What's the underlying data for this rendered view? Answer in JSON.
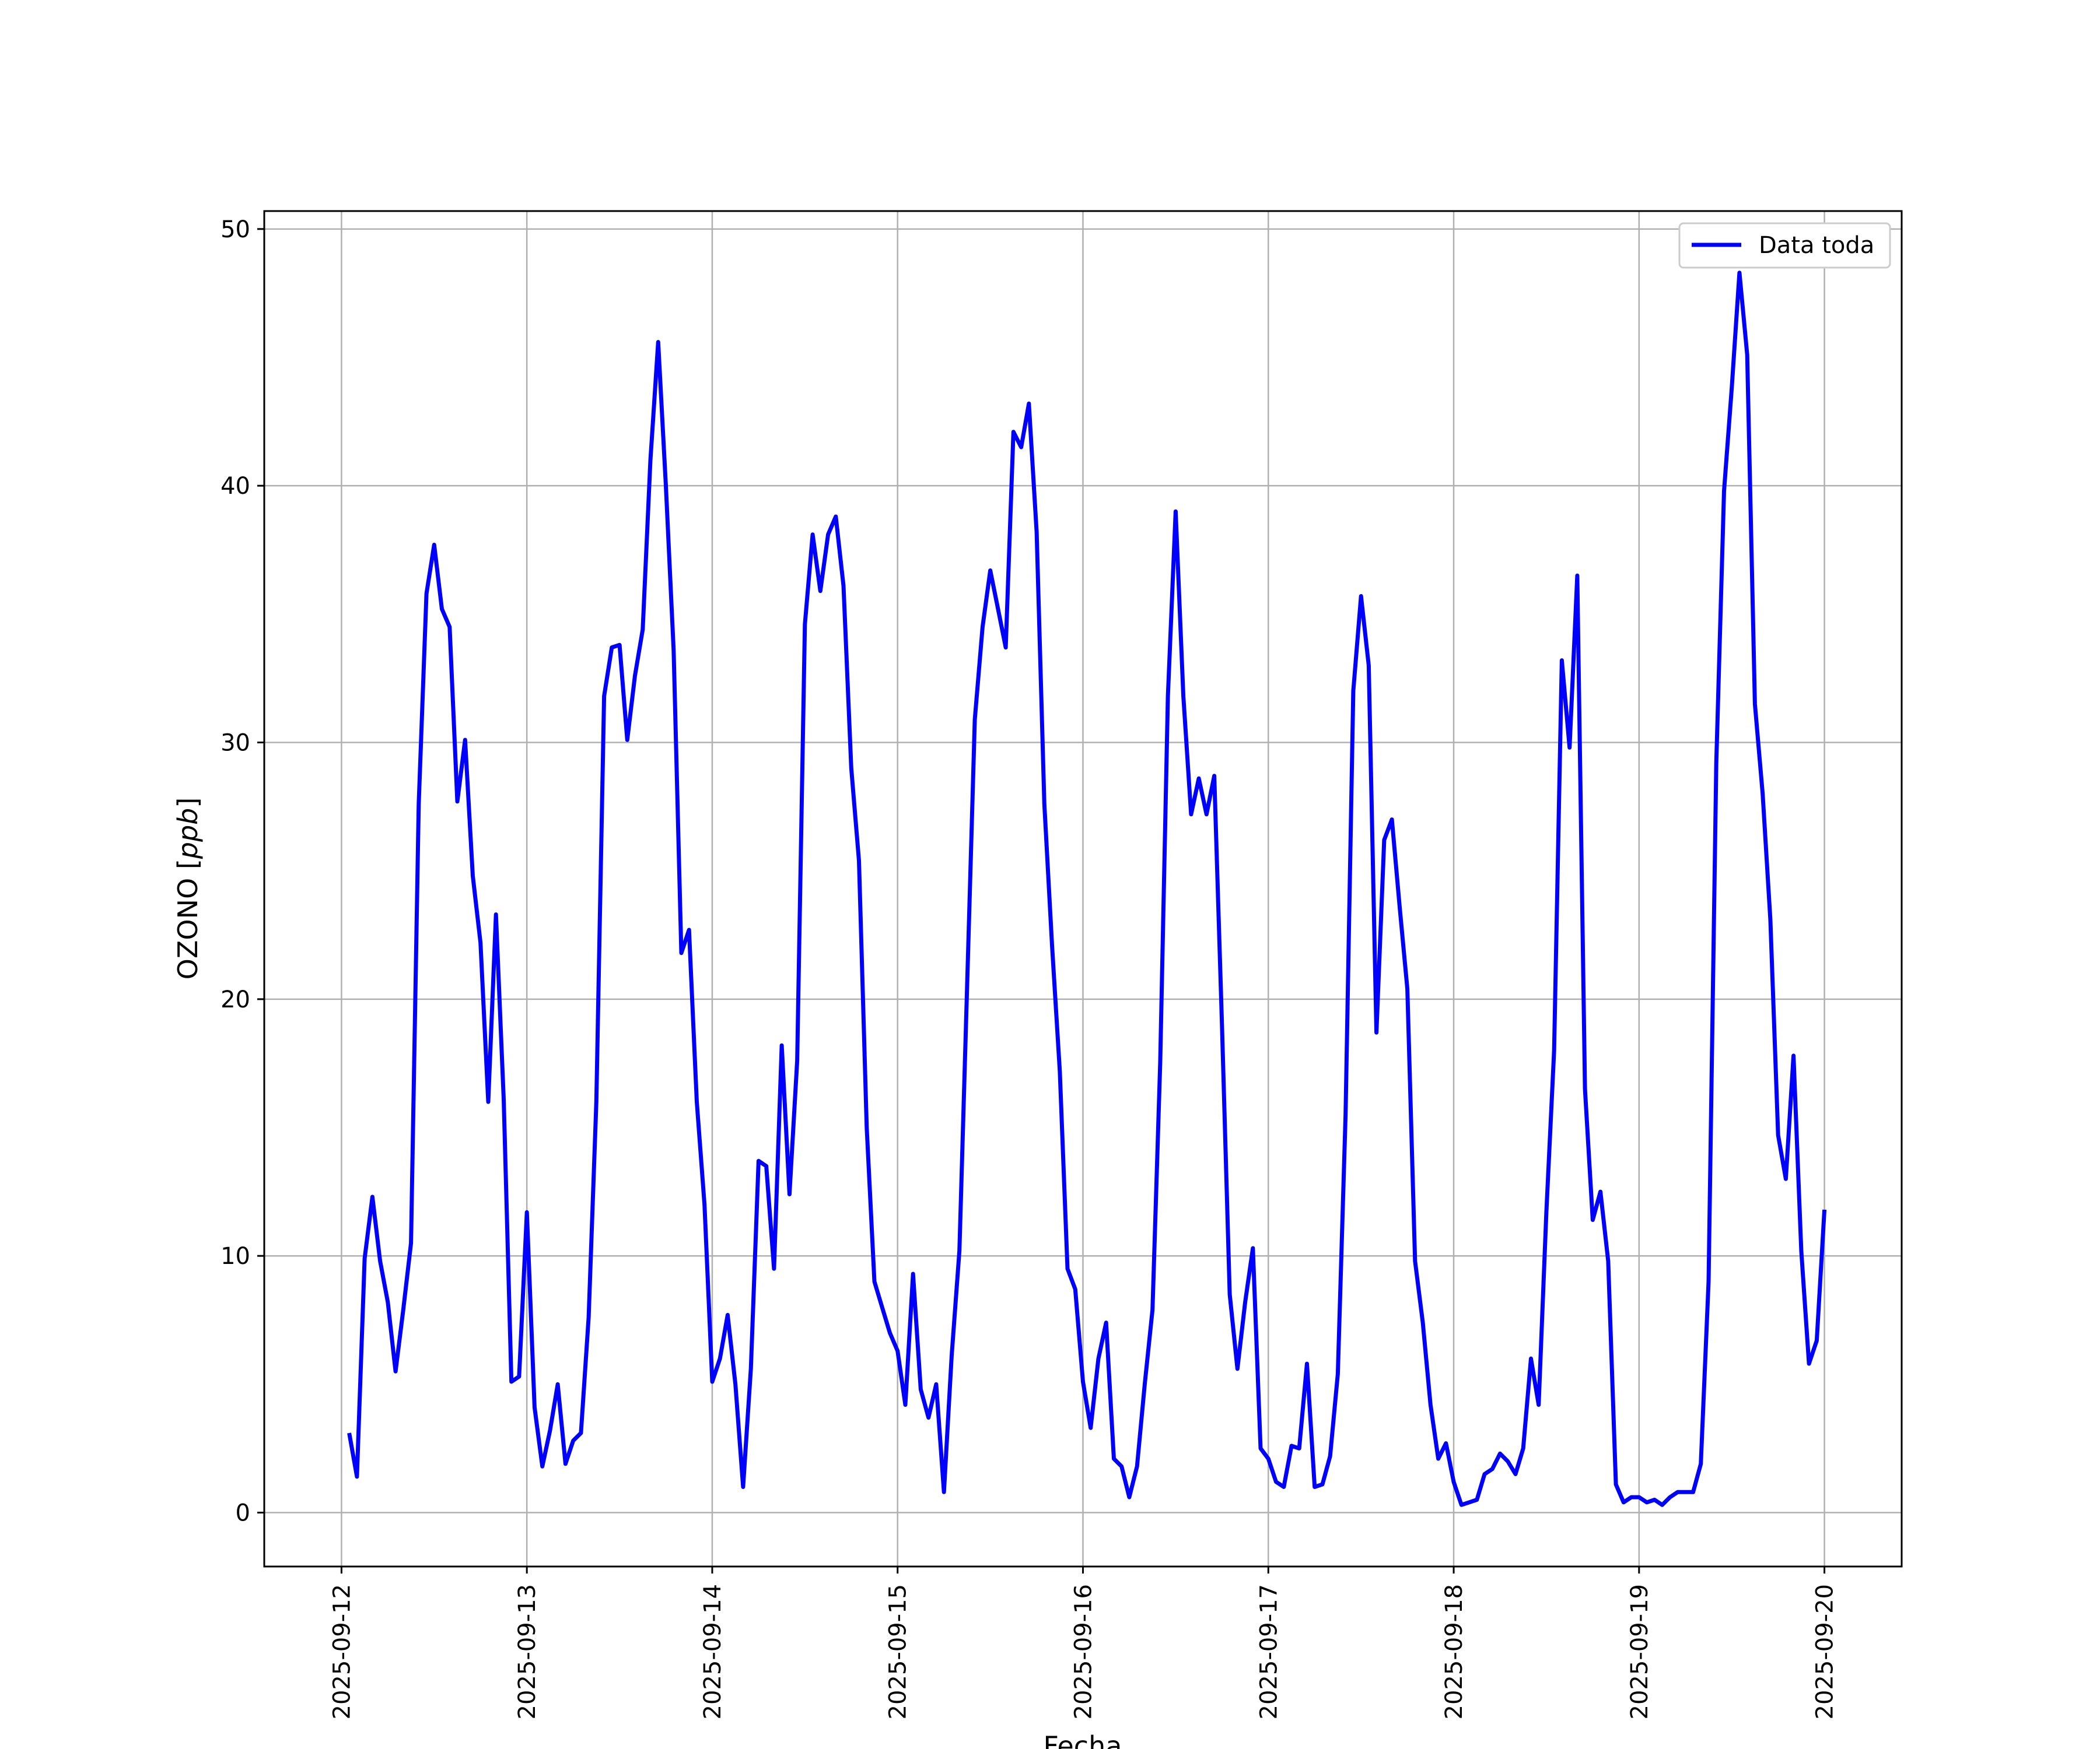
{
  "chart_data": {
    "type": "line",
    "title": "",
    "xlabel": "Fecha",
    "ylabel": "OZONO [ppb]",
    "ylabel_prefix": "OZONO [",
    "ylabel_unit": "ppb",
    "ylabel_suffix": "]",
    "xlim": [
      "2025-09-11 14:00",
      "2025-09-20 10:00"
    ],
    "ylim": [
      -2.1,
      50.7
    ],
    "x_ticks": [
      "2025-09-12",
      "2025-09-13",
      "2025-09-14",
      "2025-09-15",
      "2025-09-16",
      "2025-09-17",
      "2025-09-18",
      "2025-09-19",
      "2025-09-20"
    ],
    "y_ticks": [
      "0",
      "10",
      "20",
      "30",
      "40",
      "50"
    ],
    "grid": true,
    "legend_position": "upper right",
    "series": [
      {
        "name": "Data toda",
        "color": "#0000ff",
        "x_start": "2025-09-12 01:00",
        "x_step": "1 hour",
        "x_end": "2025-09-20 00:00",
        "values": [
          3.1,
          1.4,
          9.9,
          12.3,
          9.8,
          8.2,
          5.5,
          7.9,
          10.5,
          27.6,
          35.8,
          37.7,
          35.2,
          34.5,
          27.7,
          30.1,
          24.8,
          22.2,
          16.0,
          23.3,
          16.1,
          5.1,
          5.3,
          11.7,
          4.1,
          1.8,
          3.2,
          5.0,
          1.9,
          2.8,
          3.1,
          7.6,
          16.0,
          31.8,
          33.7,
          33.8,
          30.1,
          32.6,
          34.4,
          41.0,
          45.6,
          40.0,
          33.6,
          21.8,
          22.7,
          16.0,
          12.0,
          5.1,
          6.0,
          7.7,
          5.0,
          1.0,
          5.6,
          13.7,
          13.5,
          9.5,
          18.2,
          12.4,
          17.6,
          34.6,
          38.1,
          35.9,
          38.1,
          38.8,
          36.1,
          29.0,
          25.4,
          15.0,
          9.0,
          8.0,
          7.0,
          6.3,
          4.2,
          9.3,
          4.8,
          3.7,
          5.0,
          0.8,
          6.1,
          10.2,
          20.5,
          30.9,
          34.5,
          36.7,
          35.2,
          33.7,
          42.1,
          41.5,
          43.2,
          38.2,
          27.6,
          22.1,
          17.2,
          9.5,
          8.7,
          5.1,
          3.3,
          6.0,
          7.4,
          2.1,
          1.8,
          0.6,
          1.8,
          5.0,
          7.9,
          17.5,
          31.8,
          39.0,
          31.8,
          27.2,
          28.6,
          27.2,
          28.7,
          19.0,
          8.5,
          5.6,
          8.2,
          10.3,
          2.5,
          2.1,
          1.2,
          1.0,
          2.6,
          2.5,
          5.8,
          1.0,
          1.1,
          2.2,
          5.4,
          15.5,
          32.0,
          35.7,
          33.0,
          18.7,
          26.2,
          27.0,
          23.6,
          20.4,
          9.8,
          7.4,
          4.2,
          2.1,
          2.7,
          1.2,
          0.3,
          0.4,
          0.5,
          1.5,
          1.7,
          2.3,
          2.0,
          1.5,
          2.5,
          6.0,
          4.2,
          11.7,
          18.0,
          33.2,
          29.8,
          36.5,
          16.5,
          11.4,
          12.5,
          9.8,
          1.1,
          0.4,
          0.6,
          0.6,
          0.4,
          0.5,
          0.3,
          0.6,
          0.8,
          0.8,
          0.8,
          1.9,
          9.0,
          29.2,
          39.8,
          43.8,
          48.3,
          45.1,
          31.5,
          28.0,
          23.1,
          14.7,
          13.0,
          17.8,
          10.2,
          5.8,
          6.7,
          11.8
        ]
      }
    ]
  }
}
